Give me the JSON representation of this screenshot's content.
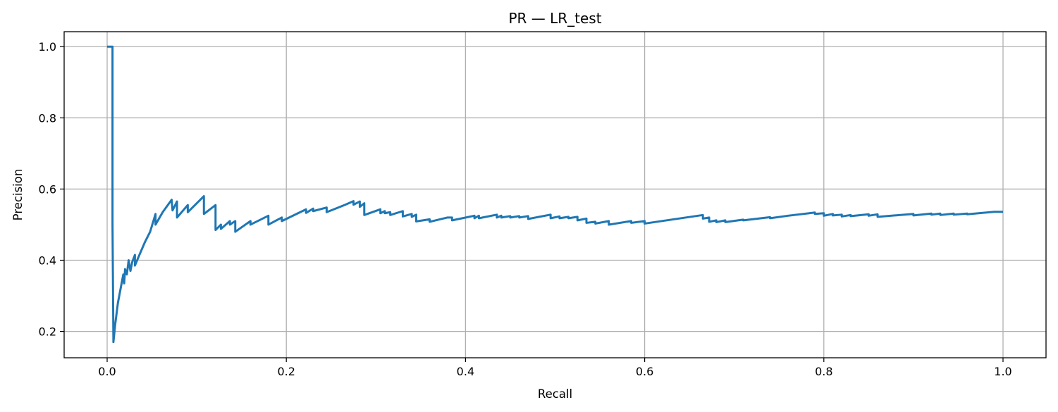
{
  "chart_data": {
    "type": "line",
    "title": "PR — LR_test",
    "xlabel": "Recall",
    "ylabel": "Precision",
    "xlim": [
      -0.048,
      1.048
    ],
    "ylim": [
      0.126,
      1.042
    ],
    "xticks": [
      0.0,
      0.2,
      0.4,
      0.6,
      0.8,
      1.0
    ],
    "xtick_labels": [
      "0.0",
      "0.2",
      "0.4",
      "0.6",
      "0.8",
      "1.0"
    ],
    "yticks": [
      0.2,
      0.4,
      0.6,
      0.8,
      1.0
    ],
    "ytick_labels": [
      "0.2",
      "0.4",
      "0.6",
      "0.8",
      "1.0"
    ],
    "grid": true,
    "line_color": "#1f77b4",
    "series": [
      {
        "values": [
          [
            0.0,
            1.0
          ],
          [
            0.006,
            1.0
          ],
          [
            0.006,
            0.5
          ],
          [
            0.007,
            0.17
          ],
          [
            0.009,
            0.22
          ],
          [
            0.012,
            0.28
          ],
          [
            0.015,
            0.32
          ],
          [
            0.018,
            0.36
          ],
          [
            0.019,
            0.335
          ],
          [
            0.02,
            0.375
          ],
          [
            0.022,
            0.36
          ],
          [
            0.024,
            0.4
          ],
          [
            0.026,
            0.37
          ],
          [
            0.028,
            0.395
          ],
          [
            0.031,
            0.415
          ],
          [
            0.031,
            0.385
          ],
          [
            0.036,
            0.415
          ],
          [
            0.042,
            0.45
          ],
          [
            0.048,
            0.48
          ],
          [
            0.054,
            0.53
          ],
          [
            0.054,
            0.5
          ],
          [
            0.062,
            0.535
          ],
          [
            0.072,
            0.57
          ],
          [
            0.073,
            0.54
          ],
          [
            0.078,
            0.565
          ],
          [
            0.078,
            0.52
          ],
          [
            0.09,
            0.555
          ],
          [
            0.09,
            0.535
          ],
          [
            0.108,
            0.58
          ],
          [
            0.108,
            0.53
          ],
          [
            0.121,
            0.555
          ],
          [
            0.121,
            0.485
          ],
          [
            0.127,
            0.5
          ],
          [
            0.127,
            0.488
          ],
          [
            0.137,
            0.51
          ],
          [
            0.137,
            0.5
          ],
          [
            0.143,
            0.51
          ],
          [
            0.143,
            0.48
          ],
          [
            0.16,
            0.51
          ],
          [
            0.16,
            0.5
          ],
          [
            0.18,
            0.525
          ],
          [
            0.18,
            0.5
          ],
          [
            0.195,
            0.52
          ],
          [
            0.195,
            0.51
          ],
          [
            0.222,
            0.543
          ],
          [
            0.222,
            0.533
          ],
          [
            0.23,
            0.545
          ],
          [
            0.23,
            0.538
          ],
          [
            0.245,
            0.548
          ],
          [
            0.245,
            0.535
          ],
          [
            0.265,
            0.555
          ],
          [
            0.275,
            0.566
          ],
          [
            0.275,
            0.556
          ],
          [
            0.282,
            0.565
          ],
          [
            0.282,
            0.55
          ],
          [
            0.287,
            0.56
          ],
          [
            0.287,
            0.527
          ],
          [
            0.305,
            0.543
          ],
          [
            0.305,
            0.532
          ],
          [
            0.31,
            0.538
          ],
          [
            0.31,
            0.532
          ],
          [
            0.316,
            0.535
          ],
          [
            0.316,
            0.527
          ],
          [
            0.33,
            0.538
          ],
          [
            0.33,
            0.523
          ],
          [
            0.34,
            0.53
          ],
          [
            0.34,
            0.522
          ],
          [
            0.345,
            0.528
          ],
          [
            0.345,
            0.509
          ],
          [
            0.36,
            0.515
          ],
          [
            0.36,
            0.508
          ],
          [
            0.38,
            0.52
          ],
          [
            0.385,
            0.52
          ],
          [
            0.385,
            0.512
          ],
          [
            0.41,
            0.525
          ],
          [
            0.41,
            0.518
          ],
          [
            0.415,
            0.525
          ],
          [
            0.415,
            0.518
          ],
          [
            0.435,
            0.528
          ],
          [
            0.435,
            0.52
          ],
          [
            0.44,
            0.525
          ],
          [
            0.44,
            0.52
          ],
          [
            0.45,
            0.524
          ],
          [
            0.45,
            0.52
          ],
          [
            0.46,
            0.524
          ],
          [
            0.46,
            0.52
          ],
          [
            0.47,
            0.524
          ],
          [
            0.47,
            0.516
          ],
          [
            0.495,
            0.528
          ],
          [
            0.495,
            0.518
          ],
          [
            0.505,
            0.523
          ],
          [
            0.505,
            0.518
          ],
          [
            0.515,
            0.522
          ],
          [
            0.515,
            0.518
          ],
          [
            0.525,
            0.522
          ],
          [
            0.525,
            0.512
          ],
          [
            0.535,
            0.517
          ],
          [
            0.535,
            0.505
          ],
          [
            0.545,
            0.508
          ],
          [
            0.545,
            0.503
          ],
          [
            0.56,
            0.51
          ],
          [
            0.56,
            0.5
          ],
          [
            0.585,
            0.51
          ],
          [
            0.585,
            0.505
          ],
          [
            0.6,
            0.51
          ],
          [
            0.6,
            0.503
          ],
          [
            0.665,
            0.527
          ],
          [
            0.665,
            0.517
          ],
          [
            0.672,
            0.52
          ],
          [
            0.672,
            0.508
          ],
          [
            0.68,
            0.512
          ],
          [
            0.68,
            0.507
          ],
          [
            0.69,
            0.512
          ],
          [
            0.69,
            0.507
          ],
          [
            0.71,
            0.514
          ],
          [
            0.71,
            0.512
          ],
          [
            0.74,
            0.521
          ],
          [
            0.74,
            0.518
          ],
          [
            0.76,
            0.525
          ],
          [
            0.79,
            0.534
          ],
          [
            0.79,
            0.53
          ],
          [
            0.8,
            0.532
          ],
          [
            0.8,
            0.525
          ],
          [
            0.81,
            0.53
          ],
          [
            0.81,
            0.526
          ],
          [
            0.82,
            0.528
          ],
          [
            0.82,
            0.523
          ],
          [
            0.83,
            0.527
          ],
          [
            0.83,
            0.524
          ],
          [
            0.85,
            0.529
          ],
          [
            0.85,
            0.525
          ],
          [
            0.86,
            0.529
          ],
          [
            0.86,
            0.522
          ],
          [
            0.9,
            0.53
          ],
          [
            0.9,
            0.526
          ],
          [
            0.92,
            0.531
          ],
          [
            0.92,
            0.528
          ],
          [
            0.93,
            0.531
          ],
          [
            0.93,
            0.527
          ],
          [
            0.945,
            0.531
          ],
          [
            0.945,
            0.528
          ],
          [
            0.96,
            0.531
          ],
          [
            0.96,
            0.529
          ],
          [
            0.99,
            0.536
          ],
          [
            1.0,
            0.536
          ]
        ]
      }
    ]
  }
}
